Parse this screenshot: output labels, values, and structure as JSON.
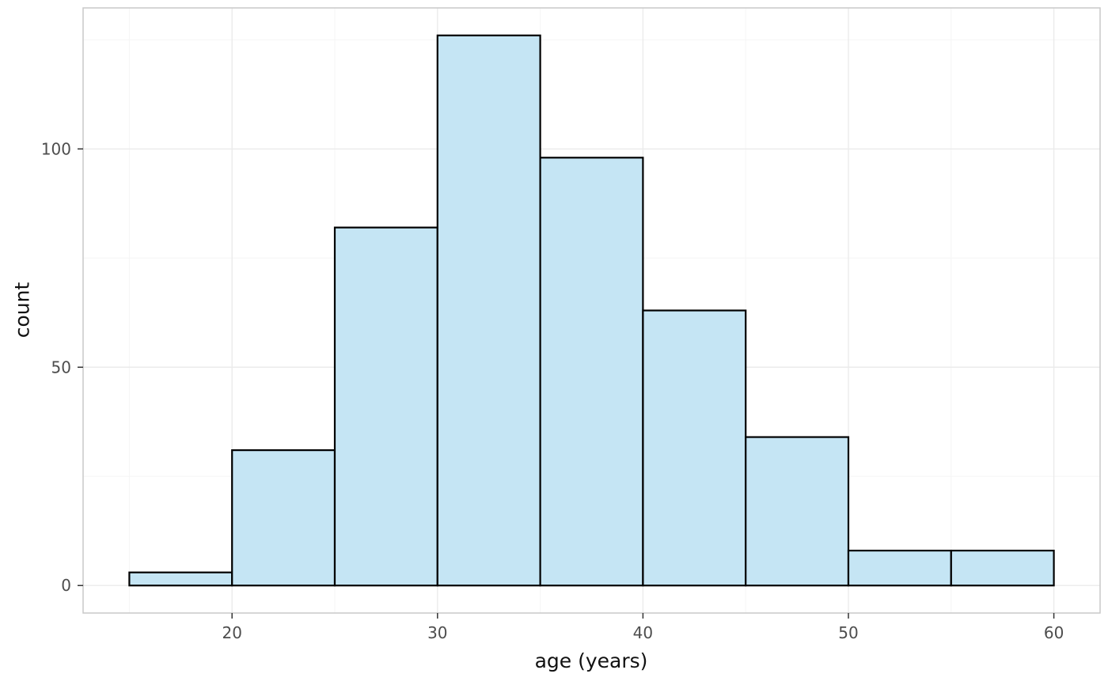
{
  "chart_data": {
    "type": "histogram",
    "title": "",
    "xlabel": "age (years)",
    "ylabel": "count",
    "bin_width": 5,
    "bin_edges": [
      15,
      20,
      25,
      30,
      35,
      40,
      45,
      50,
      55,
      60
    ],
    "counts": [
      3,
      31,
      82,
      126,
      98,
      63,
      34,
      8,
      8
    ],
    "x_ticks": [
      20,
      30,
      40,
      50,
      60
    ],
    "y_ticks": [
      0,
      50,
      100
    ],
    "x_minor_ticks": [
      15,
      25,
      35,
      45,
      55
    ],
    "y_minor_ticks": [
      25,
      75,
      125
    ],
    "xlim": [
      12.75,
      62.25
    ],
    "ylim": [
      -6.3,
      132.3
    ],
    "bar_fill": "#C5E5F4",
    "bar_stroke": "#000000",
    "grid_major_color": "#EBEBEB",
    "grid_minor_color": "#F5F5F5",
    "panel_border_color": "#C9C9C9",
    "tick_mark_color": "#333333",
    "axis_text_color": "#4D4D4D",
    "axis_title_color": "#111111",
    "background": "#FFFFFF",
    "legend": "none",
    "grid": "on"
  }
}
